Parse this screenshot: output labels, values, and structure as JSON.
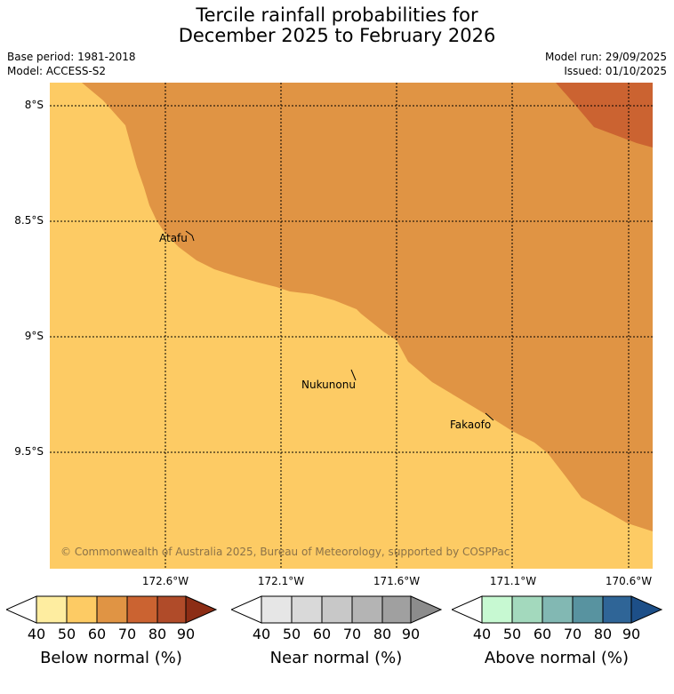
{
  "header": {
    "title_line1": "Tercile rainfall probabilities for",
    "title_line2": "December 2025 to February 2026",
    "base_period": "Base period: 1981-2018",
    "model": "Model: ACCESS-S2",
    "model_run": "Model run: 29/09/2025",
    "issued": "Issued: 01/10/2025"
  },
  "map": {
    "lat_labels": [
      "8°S",
      "8.5°S",
      "9°S",
      "9.5°S"
    ],
    "lon_labels": [
      "172.6°W",
      "172.1°W",
      "171.6°W",
      "171.1°W",
      "170.6°W"
    ],
    "places": [
      "Atafu",
      "Nukunonu",
      "Fakaofo"
    ],
    "copyright": "© Commonwealth of Australia 2025, Bureau of Meteorology, supported by COSPPac",
    "regions": [
      {
        "category": "below",
        "bin": "50-60",
        "color": "#fdcb64"
      },
      {
        "category": "below",
        "bin": "60-70",
        "color": "#e09444"
      },
      {
        "category": "below",
        "bin": "70-80",
        "color": "#cb6331"
      }
    ]
  },
  "legends": {
    "below": {
      "label": "Below normal (%)",
      "ticks": [
        "40",
        "50",
        "60",
        "70",
        "80",
        "90"
      ],
      "colors": [
        "#ffffff",
        "#feeda0",
        "#fdcb64",
        "#e09444",
        "#cb6331",
        "#b04b29",
        "#8c2d15"
      ]
    },
    "near": {
      "label": "Near normal (%)",
      "ticks": [
        "40",
        "50",
        "60",
        "70",
        "80",
        "90"
      ],
      "colors": [
        "#ffffff",
        "#e6e6e6",
        "#d9d9d9",
        "#c8c8c8",
        "#b4b4b4",
        "#a0a0a0",
        "#8c8c8c"
      ]
    },
    "above": {
      "label": "Above normal (%)",
      "ticks": [
        "40",
        "50",
        "60",
        "70",
        "80",
        "90"
      ],
      "colors": [
        "#ffffff",
        "#c7f9d2",
        "#a3d9bd",
        "#82b8b3",
        "#5893a0",
        "#2f6597",
        "#1d4f88"
      ]
    }
  }
}
